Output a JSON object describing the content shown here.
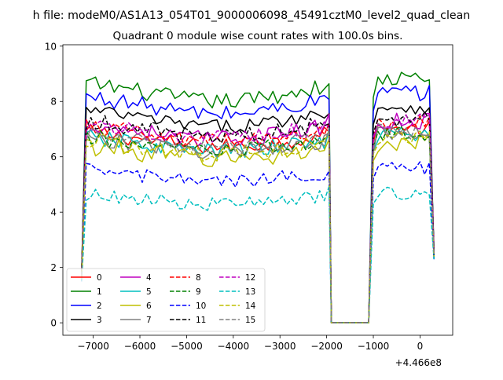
{
  "chart_data": {
    "type": "line",
    "suptitle": "h file: modeM0/AS1A13_054T01_9000006098_45491cztM0_level2_quad_clean",
    "title": "Quadrant 0 module wise count rates with 100.0s bins.",
    "xlabel": "",
    "ylabel": "",
    "x_offset_label": "+4.466e8",
    "xlim": [
      -7650,
      700
    ],
    "ylim": [
      -0.45,
      10.05
    ],
    "xticks": [
      -7000,
      -6000,
      -5000,
      -4000,
      -3000,
      -2000,
      -1000,
      0
    ],
    "xtick_labels": [
      "−7000",
      "−6000",
      "−5000",
      "−4000",
      "−3000",
      "−2000",
      "−1000",
      "0"
    ],
    "yticks": [
      0,
      2,
      4,
      6,
      8,
      10
    ],
    "ytick_labels": [
      "0",
      "2",
      "4",
      "6",
      "8",
      "10"
    ],
    "grid": false,
    "legend_location": "lower left",
    "legend_columns": 4,
    "segments": [
      {
        "x_start": -7250,
        "x_end": -2000,
        "step": 100
      },
      {
        "x_start": -1000,
        "x_end": 300,
        "step": 100
      }
    ],
    "gap": {
      "x_start": -1900,
      "x_end": -1100,
      "step": 100,
      "value": 0
    },
    "series": [
      {
        "name": "0",
        "color": "#ff0000",
        "dashed": false,
        "level": 7.0,
        "noise": 0.3,
        "edge": 1.7
      },
      {
        "name": "1",
        "color": "#008000",
        "dashed": false,
        "level": 8.8,
        "noise": 0.3,
        "edge": 1.6
      },
      {
        "name": "2",
        "color": "#0000ff",
        "dashed": false,
        "level": 8.3,
        "noise": 0.3,
        "edge": 1.5
      },
      {
        "name": "3",
        "color": "#000000",
        "dashed": false,
        "level": 7.8,
        "noise": 0.25,
        "edge": 1.9
      },
      {
        "name": "4",
        "color": "#bf00bf",
        "dashed": false,
        "level": 7.3,
        "noise": 0.3,
        "edge": 1.7
      },
      {
        "name": "5",
        "color": "#00bfbf",
        "dashed": false,
        "level": 6.8,
        "noise": 0.3,
        "edge": 1.6
      },
      {
        "name": "6",
        "color": "#bfbf00",
        "dashed": false,
        "level": 6.5,
        "noise": 0.35,
        "edge": 1.6
      },
      {
        "name": "7",
        "color": "#808080",
        "dashed": false,
        "level": 6.8,
        "noise": 0.3,
        "edge": 1.7
      },
      {
        "name": "8",
        "color": "#ff0000",
        "dashed": true,
        "level": 7.2,
        "noise": 0.3,
        "edge": 1.7
      },
      {
        "name": "9",
        "color": "#008000",
        "dashed": true,
        "level": 6.8,
        "noise": 0.3,
        "edge": 1.6
      },
      {
        "name": "10",
        "color": "#0000ff",
        "dashed": true,
        "level": 5.6,
        "noise": 0.25,
        "edge": 1.5
      },
      {
        "name": "11",
        "color": "#000000",
        "dashed": true,
        "level": 7.4,
        "noise": 0.3,
        "edge": 1.8
      },
      {
        "name": "12",
        "color": "#bf00bf",
        "dashed": true,
        "level": 7.3,
        "noise": 0.3,
        "edge": 1.7
      },
      {
        "name": "13",
        "color": "#00bfbf",
        "dashed": true,
        "level": 4.7,
        "noise": 0.25,
        "edge": 1.5
      },
      {
        "name": "14",
        "color": "#bfbf00",
        "dashed": true,
        "level": 6.7,
        "noise": 0.3,
        "edge": 1.6
      },
      {
        "name": "15",
        "color": "#808080",
        "dashed": true,
        "level": 6.9,
        "noise": 0.3,
        "edge": 1.7
      }
    ]
  }
}
